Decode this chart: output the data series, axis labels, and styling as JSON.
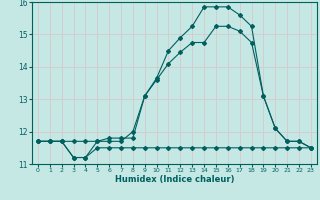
{
  "xlabel": "Humidex (Indice chaleur)",
  "xlim": [
    -0.5,
    23.5
  ],
  "ylim": [
    11,
    16
  ],
  "yticks": [
    11,
    12,
    13,
    14,
    15,
    16
  ],
  "xticks": [
    0,
    1,
    2,
    3,
    4,
    5,
    6,
    7,
    8,
    9,
    10,
    11,
    12,
    13,
    14,
    15,
    16,
    17,
    18,
    19,
    20,
    21,
    22,
    23
  ],
  "bg_color": "#c5e8e4",
  "grid_color": "#d8c8cc",
  "line_color": "#005f5f",
  "line1_x": [
    0,
    1,
    2,
    3,
    4,
    5,
    6,
    7,
    8,
    9,
    10,
    11,
    12,
    13,
    14,
    15,
    16,
    17,
    18,
    19,
    20,
    21,
    22,
    23
  ],
  "line1_y": [
    11.7,
    11.7,
    11.7,
    11.2,
    11.2,
    11.5,
    11.5,
    11.5,
    11.5,
    11.5,
    11.5,
    11.5,
    11.5,
    11.5,
    11.5,
    11.5,
    11.5,
    11.5,
    11.5,
    11.5,
    11.5,
    11.5,
    11.5,
    11.5
  ],
  "line2_x": [
    0,
    1,
    2,
    3,
    4,
    5,
    6,
    7,
    8,
    9,
    10,
    11,
    12,
    13,
    14,
    15,
    16,
    17,
    18,
    19,
    20,
    21,
    22,
    23
  ],
  "line2_y": [
    11.7,
    11.7,
    11.7,
    11.7,
    11.7,
    11.7,
    11.7,
    11.7,
    12.0,
    13.1,
    13.6,
    14.1,
    14.45,
    14.75,
    14.75,
    15.25,
    15.25,
    15.1,
    14.75,
    13.1,
    12.1,
    11.7,
    11.7,
    11.5
  ],
  "line3_x": [
    0,
    1,
    2,
    3,
    4,
    5,
    6,
    7,
    8,
    9,
    10,
    11,
    12,
    13,
    14,
    15,
    16,
    17,
    18,
    19,
    20,
    21,
    22,
    23
  ],
  "line3_y": [
    11.7,
    11.7,
    11.7,
    11.2,
    11.2,
    11.7,
    11.8,
    11.8,
    11.8,
    13.1,
    13.65,
    14.5,
    14.9,
    15.25,
    15.85,
    15.85,
    15.85,
    15.6,
    15.25,
    13.1,
    12.1,
    11.7,
    11.7,
    11.5
  ]
}
